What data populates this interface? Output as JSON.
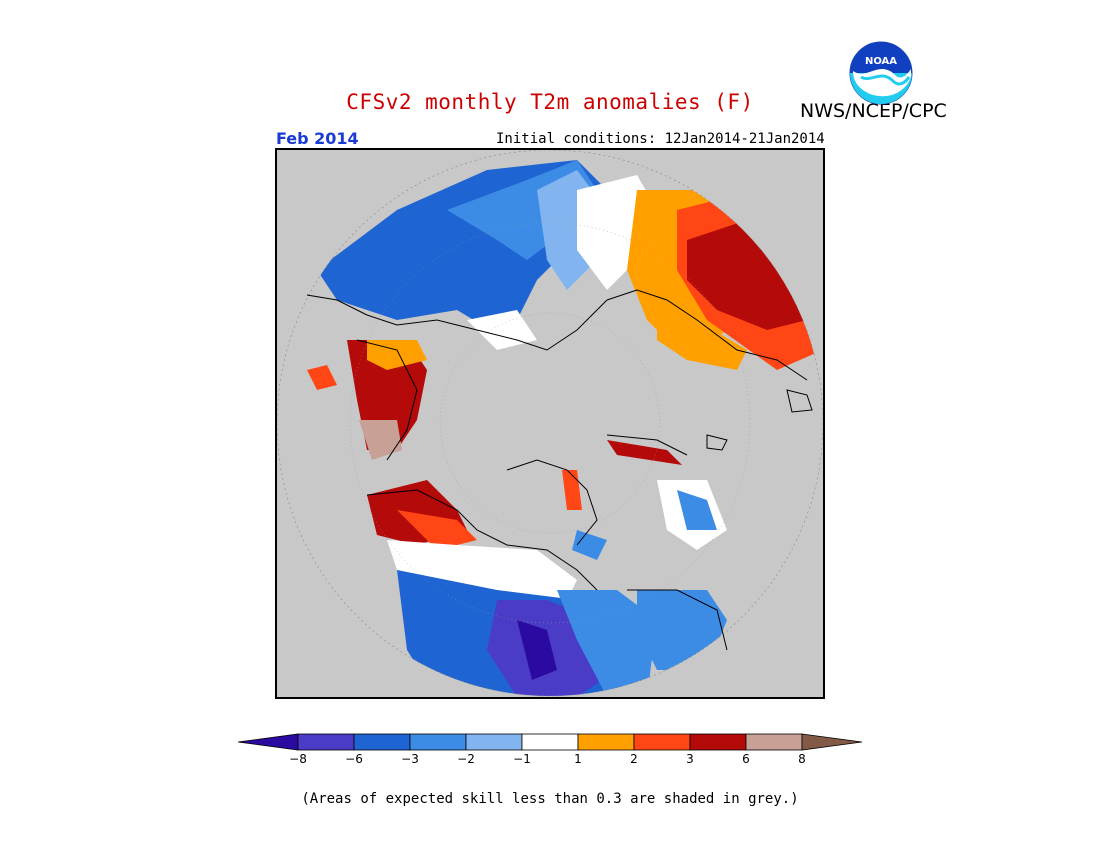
{
  "title": "CFSv2 monthly T2m anomalies (F)",
  "org": "NWS/NCEP/CPC",
  "month": "Feb 2014",
  "initial_conditions": "Initial conditions: 12Jan2014-21Jan2014",
  "logo_text": "NOAA",
  "note": "(Areas of expected skill less than 0.3 are shaded in grey.)",
  "colors": {
    "title": "#cc0000",
    "month": "#1a3ad6",
    "low_skill_grey": "#c8c8c8"
  },
  "legend": {
    "ticks": [
      "−8",
      "−6",
      "−3",
      "−2",
      "−1",
      "1",
      "2",
      "3",
      "6",
      "8"
    ],
    "colors": [
      "#2a0aa0",
      "#4b3cc8",
      "#1e64d2",
      "#3c8ce6",
      "#82b4f0",
      "#ffffff",
      "#ffa000",
      "#ff4614",
      "#b40a0a",
      "#c8a096",
      "#825a46"
    ]
  }
}
